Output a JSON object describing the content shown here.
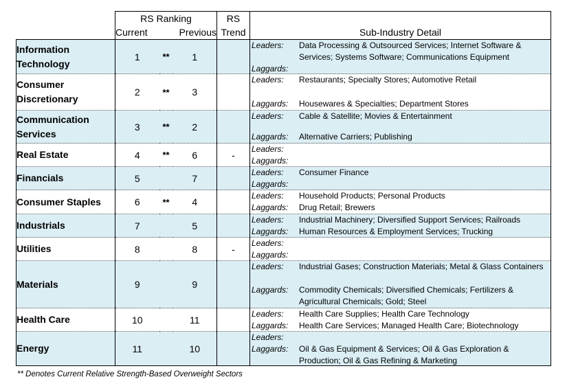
{
  "header": {
    "rs_ranking": "RS Ranking",
    "rs": "RS",
    "current": "Current",
    "previous": "Previous",
    "trend": "Trend",
    "detail": "Sub-Industry Detail"
  },
  "labels": {
    "leaders": "Leaders:",
    "laggards": "Laggards:"
  },
  "rows": [
    {
      "sector": "Information Technology",
      "current": "1",
      "overweight": "**",
      "previous": "1",
      "trend": "",
      "leaders": "Data Processing & Outsourced Services; Internet Software & Services; Systems Software; Communications Equipment",
      "laggards": ""
    },
    {
      "sector": "Consumer Discretionary",
      "current": "2",
      "overweight": "**",
      "previous": "3",
      "trend": "",
      "leaders": "Restaurants; Specialty Stores; Automotive Retail",
      "laggards": "Housewares & Specialties; Department Stores"
    },
    {
      "sector": "Communication Services",
      "current": "3",
      "overweight": "**",
      "previous": "2",
      "trend": "",
      "leaders": "Cable & Satellite; Movies & Entertainment",
      "laggards": "Alternative Carriers; Publishing"
    },
    {
      "sector": "Real Estate",
      "current": "4",
      "overweight": "**",
      "previous": "6",
      "trend": "-",
      "leaders": "",
      "laggards": ""
    },
    {
      "sector": "Financials",
      "current": "5",
      "overweight": "",
      "previous": "7",
      "trend": "",
      "leaders": "Consumer Finance",
      "laggards": ""
    },
    {
      "sector": "Consumer Staples",
      "current": "6",
      "overweight": "**",
      "previous": "4",
      "trend": "",
      "leaders": "Household Products; Personal Products",
      "laggards": "Drug Retail; Brewers"
    },
    {
      "sector": "Industrials",
      "current": "7",
      "overweight": "",
      "previous": "5",
      "trend": "",
      "leaders": "Industrial Machinery; Diversified Support Services; Railroads",
      "laggards": "Human Resources & Employment Services; Trucking"
    },
    {
      "sector": "Utilities",
      "current": "8",
      "overweight": "",
      "previous": "8",
      "trend": "-",
      "leaders": "",
      "laggards": ""
    },
    {
      "sector": "Materials",
      "current": "9",
      "overweight": "",
      "previous": "9",
      "trend": "",
      "leaders": "Industrial Gases; Construction Materials; Metal & Glass Containers",
      "laggards": "Commodity Chemicals; Diversified Chemicals; Fertilizers & Agricultural Chemicals; Gold; Steel"
    },
    {
      "sector": "Health Care",
      "current": "10",
      "overweight": "",
      "previous": "11",
      "trend": "",
      "leaders": "Health Care Supplies; Health Care Technology",
      "laggards": "Health Care Services; Managed Health Care; Biotechnology"
    },
    {
      "sector": "Energy",
      "current": "11",
      "overweight": "",
      "previous": "10",
      "trend": "",
      "leaders": "",
      "laggards": "Oil & Gas Equipment & Services; Oil & Gas Exploration & Production; Oil & Gas Refining & Marketing"
    }
  ],
  "footnote": "** Denotes Current Relative Strength-Based Overweight Sectors",
  "colors": {
    "shaded_row": "#dbeef4"
  }
}
